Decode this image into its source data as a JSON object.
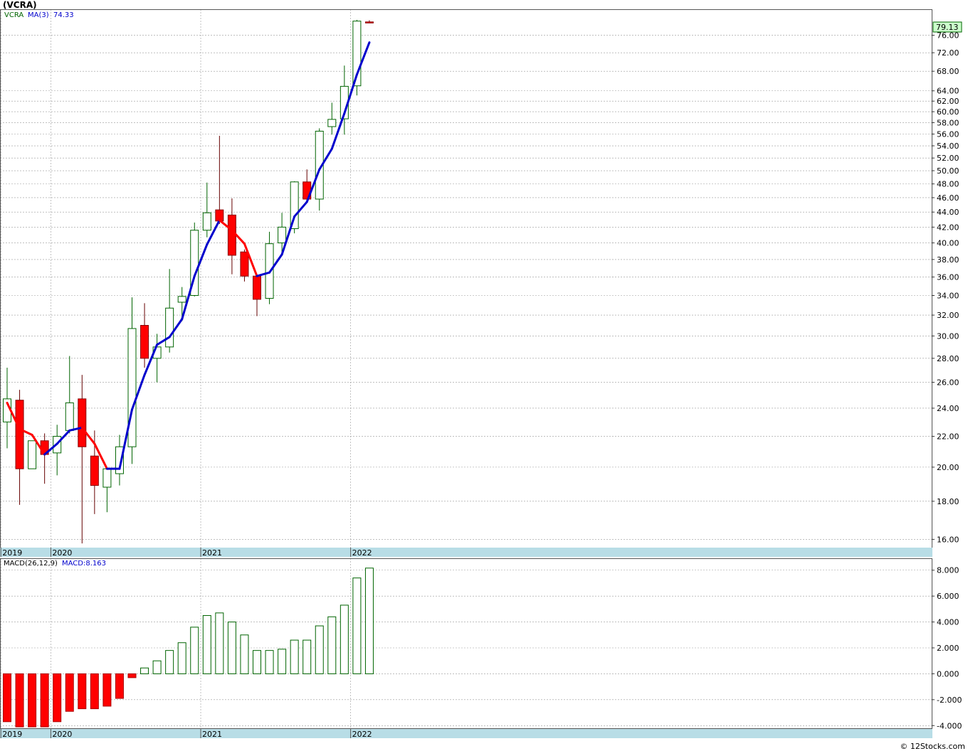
{
  "title": "(VCRA)",
  "footer": "© 12Stocks.com",
  "colors": {
    "up": "#006400",
    "down": "#ff0000",
    "ma_up": "#0000cc",
    "ma_down": "#ff0000",
    "grid": "#999999",
    "axis_band": "#b8dde6",
    "last_badge": "#ccffcc"
  },
  "chart_data": [
    {
      "type": "candlestick",
      "legend": {
        "symbol": "VCRA",
        "ma_label": "MA(3)",
        "ma_value": "74.33"
      },
      "last_price_label": "79.13",
      "y_scale": "log",
      "ylim": [
        15.7,
        82
      ],
      "y_ticks": [
        "16.00",
        "18.00",
        "20.00",
        "22.00",
        "24.00",
        "26.00",
        "28.00",
        "30.00",
        "32.00",
        "34.00",
        "36.00",
        "38.00",
        "40.00",
        "42.00",
        "44.00",
        "46.00",
        "48.00",
        "50.00",
        "52.00",
        "54.00",
        "56.00",
        "58.00",
        "60.00",
        "62.00",
        "64.00",
        "68.00",
        "72.00",
        "76.00"
      ],
      "x_labels": [
        {
          "label": "2019",
          "index": -0.5
        },
        {
          "label": "2020",
          "index": 3.5
        },
        {
          "label": "2021",
          "index": 15.5
        },
        {
          "label": "2022",
          "index": 27.5
        }
      ],
      "candles": [
        {
          "o": 23.0,
          "h": 27.2,
          "l": 21.2,
          "c": 24.7
        },
        {
          "o": 24.6,
          "h": 25.4,
          "l": 17.8,
          "c": 19.9
        },
        {
          "o": 19.9,
          "h": 21.7,
          "l": 19.9,
          "c": 21.7
        },
        {
          "o": 21.7,
          "h": 22.2,
          "l": 19.0,
          "c": 20.8
        },
        {
          "o": 20.9,
          "h": 22.8,
          "l": 19.5,
          "c": 22.0
        },
        {
          "o": 22.4,
          "h": 28.2,
          "l": 22.2,
          "c": 24.4
        },
        {
          "o": 24.7,
          "h": 26.6,
          "l": 15.8,
          "c": 21.3
        },
        {
          "o": 20.7,
          "h": 22.4,
          "l": 17.3,
          "c": 18.9
        },
        {
          "o": 18.8,
          "h": 20.0,
          "l": 17.4,
          "c": 19.9
        },
        {
          "o": 19.6,
          "h": 22.1,
          "l": 18.9,
          "c": 21.3
        },
        {
          "o": 21.3,
          "h": 33.8,
          "l": 20.2,
          "c": 30.7
        },
        {
          "o": 31.0,
          "h": 33.2,
          "l": 27.2,
          "c": 28.0
        },
        {
          "o": 28.0,
          "h": 30.2,
          "l": 26.0,
          "c": 29.0
        },
        {
          "o": 29.0,
          "h": 36.9,
          "l": 28.5,
          "c": 32.7
        },
        {
          "o": 33.3,
          "h": 34.9,
          "l": 31.4,
          "c": 33.9
        },
        {
          "o": 34.0,
          "h": 42.6,
          "l": 33.9,
          "c": 41.6
        },
        {
          "o": 41.6,
          "h": 48.2,
          "l": 40.7,
          "c": 43.9
        },
        {
          "o": 44.3,
          "h": 55.7,
          "l": 42.4,
          "c": 42.8
        },
        {
          "o": 43.6,
          "h": 45.9,
          "l": 36.3,
          "c": 38.5
        },
        {
          "o": 38.9,
          "h": 39.2,
          "l": 35.5,
          "c": 36.1
        },
        {
          "o": 36.1,
          "h": 36.2,
          "l": 31.9,
          "c": 33.6
        },
        {
          "o": 33.7,
          "h": 41.4,
          "l": 33.1,
          "c": 39.9
        },
        {
          "o": 40.0,
          "h": 43.9,
          "l": 38.4,
          "c": 42.0
        },
        {
          "o": 41.8,
          "h": 48.4,
          "l": 41.2,
          "c": 48.3
        },
        {
          "o": 48.3,
          "h": 50.2,
          "l": 45.6,
          "c": 45.8
        },
        {
          "o": 45.8,
          "h": 57.0,
          "l": 44.2,
          "c": 56.5
        },
        {
          "o": 57.3,
          "h": 61.7,
          "l": 55.9,
          "c": 58.6
        },
        {
          "o": 58.7,
          "h": 69.2,
          "l": 55.9,
          "c": 64.9
        },
        {
          "o": 65.0,
          "h": 79.7,
          "l": 63.1,
          "c": 79.4
        },
        {
          "o": 79.2,
          "h": 79.6,
          "l": 79.1,
          "c": 79.13
        }
      ],
      "ma_values": [
        24.4,
        22.5,
        22.1,
        20.8,
        21.5,
        22.4,
        22.6,
        21.5,
        19.9,
        19.9,
        23.9,
        26.6,
        29.2,
        29.9,
        31.6,
        36.1,
        39.8,
        42.9,
        41.6,
        39.9,
        36.1,
        36.5,
        38.6,
        43.4,
        45.4,
        50.2,
        53.5,
        59.7,
        67.3,
        74.33
      ],
      "ma_direction": [
        "down",
        "down",
        "down",
        "down",
        "up",
        "up",
        "up",
        "down",
        "down",
        "up",
        "up",
        "up",
        "up",
        "up",
        "up",
        "up",
        "up",
        "up",
        "down",
        "down",
        "down",
        "up",
        "up",
        "up",
        "up",
        "up",
        "up",
        "up",
        "up",
        "up"
      ]
    },
    {
      "type": "bar",
      "legend": {
        "label": "MACD(26,12,9)",
        "value_label": "MACD:8.163"
      },
      "ylim": [
        -4.15,
        8.7
      ],
      "y_ticks": [
        "8.000",
        "6.000",
        "4.000",
        "2.000",
        "0.000",
        "-2.000",
        "-4.000"
      ],
      "y_tick_values": [
        8,
        6,
        4,
        2,
        0,
        -2,
        -4
      ],
      "x_labels": [
        {
          "label": "2019",
          "index": -0.5
        },
        {
          "label": "2020",
          "index": 3.5
        },
        {
          "label": "2021",
          "index": 15.5
        },
        {
          "label": "2022",
          "index": 27.5
        }
      ],
      "values": [
        -3.7,
        -4.1,
        -4.1,
        -4.1,
        -3.7,
        -2.9,
        -2.7,
        -2.7,
        -2.5,
        -1.9,
        -0.3,
        0.45,
        1.0,
        1.8,
        2.4,
        3.6,
        4.5,
        4.7,
        4.0,
        3.0,
        1.8,
        1.8,
        1.9,
        2.6,
        2.6,
        3.7,
        4.4,
        5.3,
        7.4,
        8.163
      ]
    }
  ]
}
